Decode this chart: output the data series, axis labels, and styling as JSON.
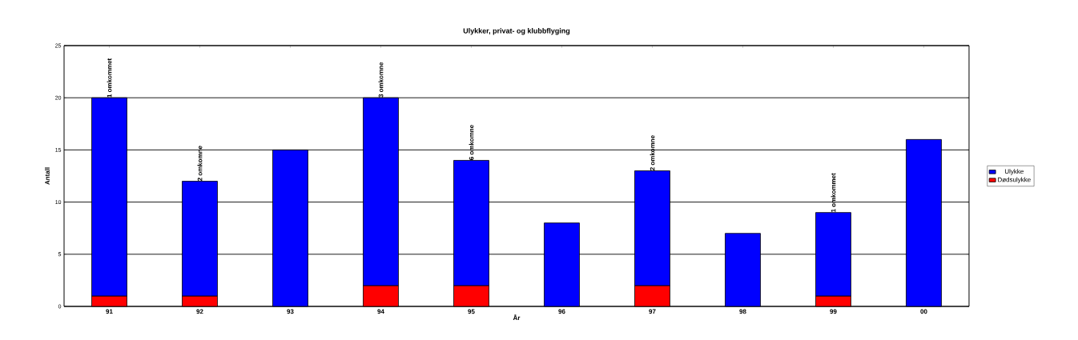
{
  "chart_data": {
    "type": "bar",
    "title": "Ulykker, privat- og klubbflyging",
    "xlabel": "År",
    "ylabel": "Antall",
    "categories": [
      "91",
      "92",
      "93",
      "94",
      "95",
      "96",
      "97",
      "98",
      "99",
      "00"
    ],
    "series": [
      {
        "name": "Dødsulykke",
        "color": "#ff0000",
        "values": [
          1,
          1,
          null,
          2,
          2,
          null,
          2,
          null,
          1,
          null
        ]
      },
      {
        "name": "Ulykke",
        "color": "#0000ff",
        "values": [
          19,
          11,
          15,
          18,
          12,
          8,
          11,
          7,
          8,
          16
        ]
      }
    ],
    "stacked": true,
    "ylim": [
      0,
      25
    ],
    "yticks": [
      0,
      5,
      10,
      15,
      20,
      25
    ],
    "grid": "y",
    "legend": "right",
    "annotations": [
      {
        "text": "1 omkommet",
        "x": "91",
        "y": 20
      },
      {
        "text": "2 omkomne",
        "x": "92",
        "y": 12
      },
      {
        "text": "3 omkomne",
        "x": "94",
        "y": 20
      },
      {
        "text": "6 omkomne",
        "x": "95",
        "y": 14
      },
      {
        "text": "2 omkomne",
        "x": "97",
        "y": 13
      },
      {
        "text": "1 omkommet",
        "x": "99",
        "y": 9
      }
    ]
  }
}
